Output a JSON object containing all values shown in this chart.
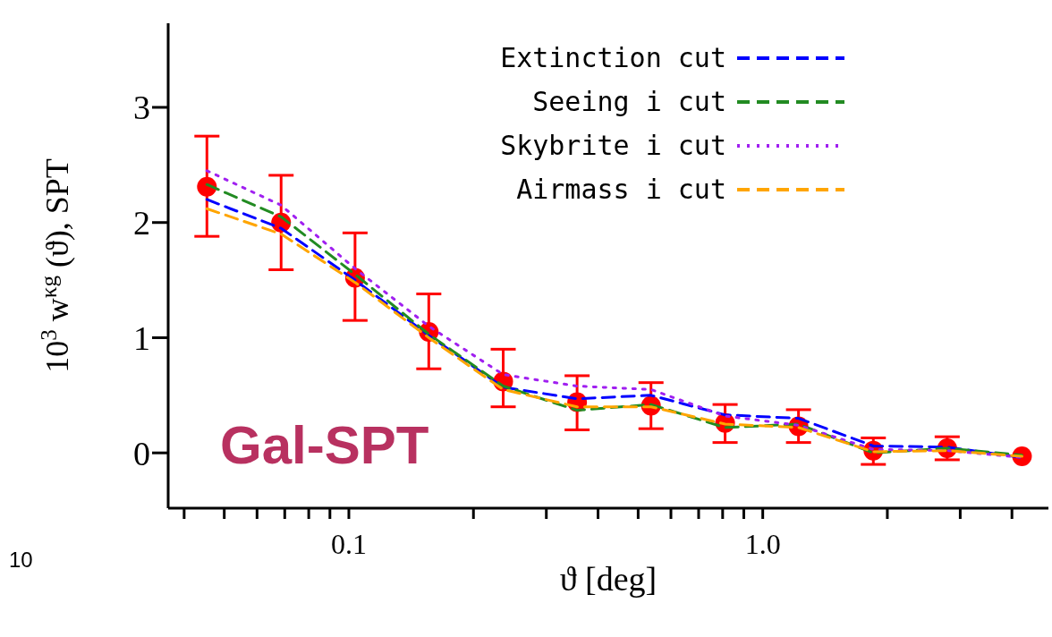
{
  "chart_data": {
    "type": "line",
    "xlabel": "ϑ  [deg]",
    "ylabel": "10$^{3}$ w$^{κg}$ (ϑ), SPT",
    "log": "x",
    "xlim": [
      0.0366,
      4.9
    ],
    "ylim": [
      -0.48,
      3.73
    ],
    "xticks": [
      {
        "value": 0.04,
        "label": null
      },
      {
        "value": 0.05,
        "label": null
      },
      {
        "value": 0.06,
        "label": null
      },
      {
        "value": 0.07,
        "label": null
      },
      {
        "value": 0.08,
        "label": null
      },
      {
        "value": 0.09,
        "label": null
      },
      {
        "value": 0.1,
        "label": "0.1"
      },
      {
        "value": 0.2,
        "label": null
      },
      {
        "value": 0.3,
        "label": null
      },
      {
        "value": 0.4,
        "label": null
      },
      {
        "value": 0.5,
        "label": null
      },
      {
        "value": 0.6,
        "label": null
      },
      {
        "value": 0.7,
        "label": null
      },
      {
        "value": 0.8,
        "label": null
      },
      {
        "value": 0.9,
        "label": null
      },
      {
        "value": 1,
        "label": "1.0"
      },
      {
        "value": 2,
        "label": null
      },
      {
        "value": 3,
        "label": null
      },
      {
        "value": 4,
        "label": null
      }
    ],
    "yticks": [
      0,
      1,
      2,
      3
    ],
    "grid": false,
    "legend": "top right",
    "x": [
      0.0454,
      0.0686,
      0.1035,
      0.156,
      0.236,
      0.356,
      0.537,
      0.811,
      1.22,
      1.85,
      2.79,
      4.23
    ],
    "series": [
      {
        "name": "Extinction cut",
        "color": "#0000ff",
        "line_style": "dashed",
        "marker": "none",
        "values": [
          2.2,
          1.95,
          1.5,
          1.02,
          0.57,
          0.47,
          0.5,
          0.33,
          0.3,
          0.06,
          0.05,
          -0.04
        ]
      },
      {
        "name": "Seeing i cut",
        "color": "#228b22",
        "line_style": "dashed",
        "marker": "none",
        "values": [
          2.33,
          2.05,
          1.55,
          1.03,
          0.58,
          0.37,
          0.42,
          0.22,
          0.25,
          0.0,
          0.04,
          -0.02
        ]
      },
      {
        "name": "Skybrite i cut",
        "color": "#a020f0",
        "line_style": "dotted",
        "marker": "none",
        "values": [
          2.45,
          2.15,
          1.6,
          1.1,
          0.68,
          0.58,
          0.55,
          0.32,
          0.24,
          0.03,
          0.02,
          -0.04
        ]
      },
      {
        "name": "Airmass i cut",
        "color": "#ffa500",
        "line_style": "dashed",
        "marker": "none",
        "values": [
          2.12,
          1.9,
          1.48,
          1.0,
          0.55,
          0.4,
          0.4,
          0.25,
          0.22,
          0.01,
          0.02,
          -0.03
        ]
      },
      {
        "type": "scatter",
        "color": "#ff0000",
        "marker": "circle",
        "values": [
          2.31,
          2.0,
          1.52,
          1.05,
          0.62,
          0.44,
          0.41,
          0.26,
          0.23,
          0.02,
          0.04,
          -0.03
        ],
        "errors": [
          [
            1.88,
            2.75
          ],
          [
            1.59,
            2.41
          ],
          [
            1.15,
            1.91
          ],
          [
            0.73,
            1.38
          ],
          [
            0.4,
            0.9
          ],
          [
            0.2,
            0.67
          ],
          [
            0.21,
            0.61
          ],
          [
            0.09,
            0.42
          ],
          [
            0.09,
            0.375
          ],
          [
            -0.1,
            0.13
          ],
          [
            -0.06,
            0.14
          ],
          null
        ]
      }
    ],
    "annotations": [
      "Gal-SPT",
      "10"
    ]
  }
}
